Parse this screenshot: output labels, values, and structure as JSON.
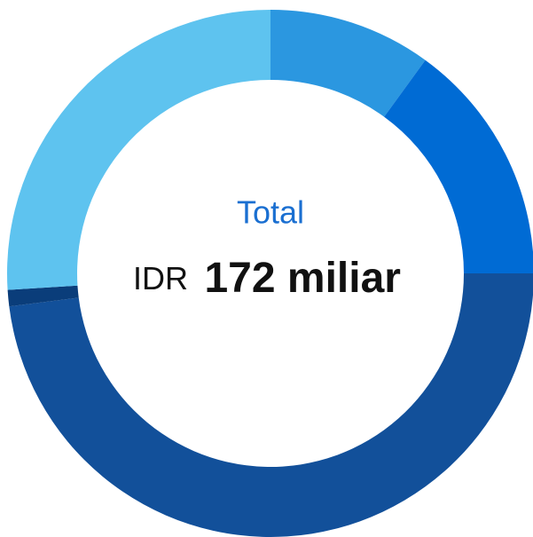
{
  "chart_data": {
    "type": "donut",
    "values": [
      10,
      15,
      48,
      1,
      26
    ],
    "colors": [
      "#2b97e0",
      "#006bd4",
      "#12509a",
      "#0a3d7a",
      "#5ec3ef"
    ],
    "center_title": "Total",
    "center_currency": "IDR",
    "center_value": "172 miliar"
  }
}
